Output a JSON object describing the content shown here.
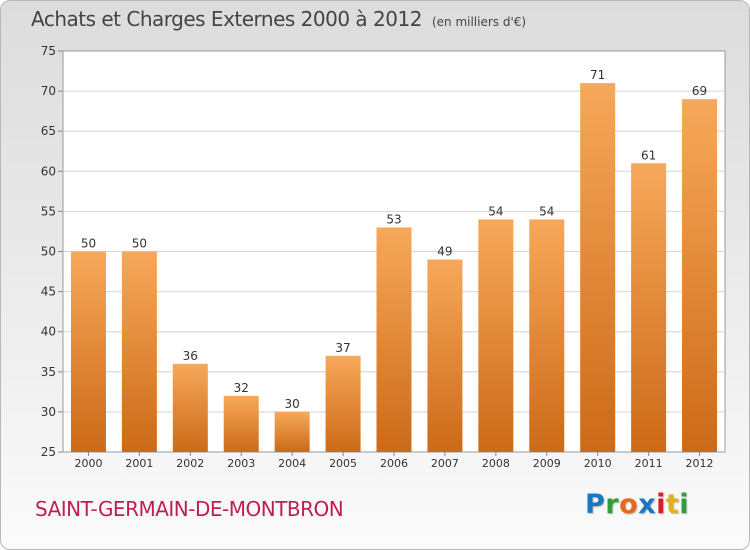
{
  "header": {
    "title": "Achats et Charges Externes 2000 à 2012",
    "subtitle": "(en milliers d'€)"
  },
  "footer": {
    "town": "SAINT-GERMAIN-DE-MONTBRON",
    "logo": "Proxiti",
    "logo_colors": [
      "#1a78c2",
      "#2f9e3a",
      "#e56a1c",
      "#1a78c2",
      "#d81f26",
      "#e0b21e",
      "#2f9e3a"
    ]
  },
  "chart_data": {
    "type": "bar",
    "title": "Achats et Charges Externes 2000 à 2012",
    "subtitle": "(en milliers d'€)",
    "categories": [
      "2000",
      "2001",
      "2002",
      "2003",
      "2004",
      "2005",
      "2006",
      "2007",
      "2008",
      "2009",
      "2010",
      "2011",
      "2012"
    ],
    "values": [
      50,
      50,
      36,
      32,
      30,
      37,
      53,
      49,
      54,
      54,
      71,
      61,
      69
    ],
    "ylim": [
      25,
      75
    ],
    "yticks": [
      25,
      30,
      35,
      40,
      45,
      50,
      55,
      60,
      65,
      70,
      75
    ],
    "grid": true,
    "bar_color_top": "#f7a85a",
    "bar_color_bottom": "#cc6a18",
    "xlabel": "",
    "ylabel": ""
  }
}
